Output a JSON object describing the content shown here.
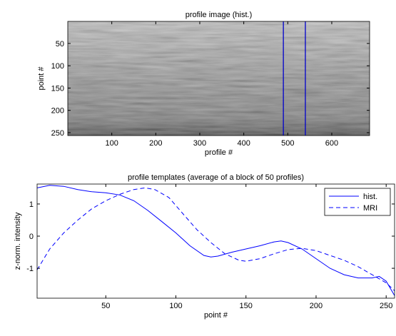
{
  "chart_data": [
    {
      "type": "image",
      "title": "profile image (hist.)",
      "xlabel": "profile #",
      "ylabel": "point #",
      "xlim": [
        0,
        686
      ],
      "ylim": [
        256.5,
        0.5
      ],
      "xticks": [
        100,
        200,
        300,
        400,
        500,
        600
      ],
      "yticks": [
        50,
        100,
        150,
        200,
        250
      ],
      "vlines": [
        490,
        540
      ],
      "color": "#0000cc"
    },
    {
      "type": "line",
      "title": "profile templates (average of a block of 50 profiles)",
      "xlabel": "point #",
      "ylabel": "z-norm. intensity",
      "xlim": [
        1,
        256
      ],
      "ylim": [
        -1.93,
        1.62
      ],
      "xticks": [
        50,
        100,
        150,
        200,
        250
      ],
      "yticks": [
        -1,
        0,
        1
      ],
      "legend": "upper right",
      "series": [
        {
          "name": "hist.",
          "color": "#0000ff",
          "dash": "solid",
          "x": [
            1,
            10,
            20,
            30,
            40,
            50,
            60,
            70,
            80,
            90,
            100,
            110,
            120,
            125,
            130,
            140,
            150,
            160,
            170,
            175,
            180,
            190,
            200,
            210,
            220,
            230,
            240,
            245,
            250,
            256
          ],
          "values": [
            1.5,
            1.58,
            1.55,
            1.45,
            1.38,
            1.35,
            1.28,
            1.1,
            0.8,
            0.45,
            0.1,
            -0.3,
            -0.6,
            -0.65,
            -0.62,
            -0.5,
            -0.4,
            -0.3,
            -0.18,
            -0.15,
            -0.2,
            -0.4,
            -0.7,
            -1.0,
            -1.2,
            -1.3,
            -1.3,
            -1.25,
            -1.4,
            -1.85
          ]
        },
        {
          "name": "MRI",
          "color": "#0000ff",
          "dash": "dashed",
          "x": [
            1,
            10,
            20,
            30,
            40,
            50,
            60,
            70,
            78,
            85,
            95,
            105,
            115,
            125,
            135,
            145,
            150,
            160,
            170,
            180,
            190,
            200,
            210,
            220,
            230,
            240,
            250,
            256
          ],
          "values": [
            -1.05,
            -0.4,
            0.1,
            0.5,
            0.85,
            1.1,
            1.3,
            1.45,
            1.5,
            1.45,
            1.2,
            0.7,
            0.2,
            -0.2,
            -0.55,
            -0.75,
            -0.78,
            -0.7,
            -0.55,
            -0.42,
            -0.38,
            -0.45,
            -0.6,
            -0.75,
            -0.95,
            -1.2,
            -1.45,
            -1.7
          ]
        }
      ]
    }
  ]
}
